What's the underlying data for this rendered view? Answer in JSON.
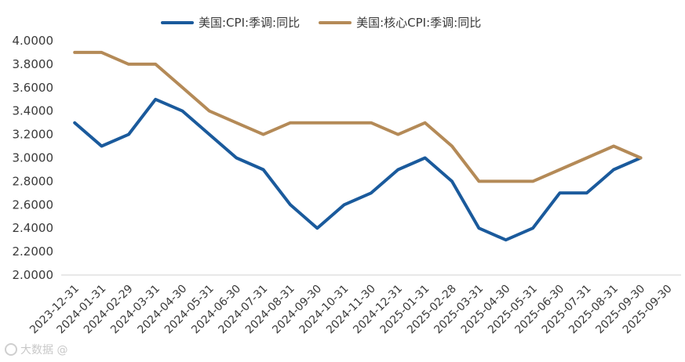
{
  "legend": {
    "series1_label": "美国:CPI:季调:同比",
    "series2_label": "美国:核心CPI:季调:同比"
  },
  "watermark": {
    "text": "大数据 @"
  },
  "colors": {
    "series1": "#1a5a9c",
    "series2": "#b48a57",
    "axis": "#d0d0d0"
  },
  "chart_data": {
    "type": "line",
    "title": "",
    "xlabel": "",
    "ylabel": "",
    "ylim": [
      2.0,
      4.0
    ],
    "yticks": [
      "2.0000",
      "2.2000",
      "2.4000",
      "2.6000",
      "2.8000",
      "3.0000",
      "3.2000",
      "3.4000",
      "3.6000",
      "3.8000",
      "4.0000"
    ],
    "categories": [
      "2023-12-31",
      "2024-01-31",
      "2024-02-29",
      "2024-03-31",
      "2024-04-30",
      "2024-05-31",
      "2024-06-30",
      "2024-07-31",
      "2024-08-31",
      "2024-09-30",
      "2024-10-31",
      "2024-11-30",
      "2024-12-31",
      "2025-01-31",
      "2025-02-28",
      "2025-03-31",
      "2025-04-30",
      "2025-05-31",
      "2025-06-30",
      "2025-07-31",
      "2025-08-31",
      "2025-09-30",
      "2025-09-30"
    ],
    "series": [
      {
        "name": "美国:CPI:季调:同比",
        "values": [
          3.3,
          3.1,
          3.2,
          3.5,
          3.4,
          3.2,
          3.0,
          2.9,
          2.6,
          2.4,
          2.6,
          2.7,
          2.9,
          3.0,
          2.8,
          2.4,
          2.3,
          2.4,
          2.7,
          2.7,
          2.9,
          3.0,
          null
        ]
      },
      {
        "name": "美国:核心CPI:季调:同比",
        "values": [
          3.9,
          3.9,
          3.8,
          3.8,
          3.6,
          3.4,
          3.3,
          3.2,
          3.3,
          3.3,
          3.3,
          3.3,
          3.2,
          3.3,
          3.1,
          2.8,
          2.8,
          2.8,
          2.9,
          3.0,
          3.1,
          3.0,
          null
        ]
      }
    ],
    "grid": false,
    "legend_position": "top"
  }
}
